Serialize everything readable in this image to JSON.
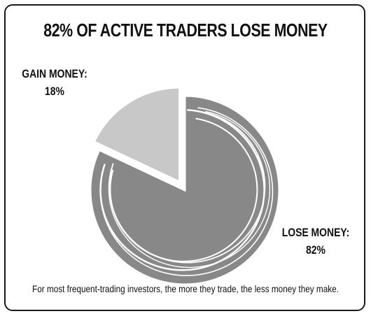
{
  "chart_data": {
    "type": "pie",
    "title": "82% OF ACTIVE TRADERS LOSE MONEY",
    "slices": [
      {
        "label": "LOSE MONEY:",
        "value": 82,
        "value_text": "82%",
        "color": "#888888"
      },
      {
        "label": "GAIN MONEY:",
        "value": 18,
        "value_text": "18%",
        "color": "#c8c8c8",
        "exploded": true
      }
    ],
    "caption": "For most frequent-trading investors, the more they trade, the less money they make."
  }
}
